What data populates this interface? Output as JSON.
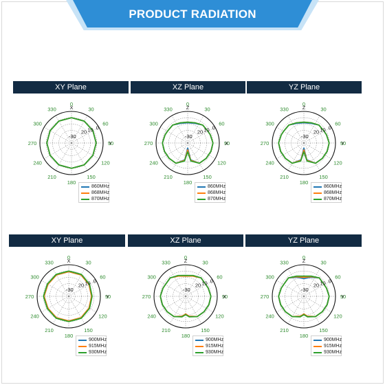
{
  "header": {
    "title": "PRODUCT RADIATION"
  },
  "colors": {
    "series": [
      "#1f77b4",
      "#ff7f0e",
      "#2ca02c"
    ],
    "banner": "#2e8ed6",
    "panel_header": "#122b43",
    "angle_labels": "#2c8a2c"
  },
  "angle_labels": [
    "0",
    "30",
    "60",
    "90",
    "120",
    "150",
    "180",
    "210",
    "240",
    "270",
    "300",
    "330"
  ],
  "radial_labels": [
    "-30",
    "20",
    "10",
    "0"
  ],
  "chart_data": [
    {
      "type": "polar",
      "title": "XY Plane",
      "axis_labels": {
        "top": "X",
        "right": "Y"
      },
      "rlim": [
        -40,
        10
      ],
      "grid": true,
      "legend_position": "lower-right",
      "theta_deg": [
        0,
        30,
        60,
        90,
        120,
        150,
        180,
        210,
        240,
        270,
        300,
        330
      ],
      "series": [
        {
          "name": "860MHz",
          "r": [
            0,
            0,
            -1,
            -1,
            -1,
            0,
            0,
            0,
            -1,
            -1,
            -1,
            0
          ]
        },
        {
          "name": "868MHz",
          "r": [
            0,
            0,
            -1,
            -1,
            -1,
            0,
            0,
            0,
            -1,
            -1,
            -1,
            0
          ]
        },
        {
          "name": "870MHz",
          "r": [
            0,
            0,
            -1,
            -1,
            -1,
            0,
            0,
            0,
            -1,
            -1,
            -1,
            0
          ]
        }
      ]
    },
    {
      "type": "polar",
      "title": "XZ Plane",
      "axis_labels": {
        "top": "Z",
        "right": "X"
      },
      "rlim": [
        -40,
        10
      ],
      "grid": true,
      "legend_position": "lower-right",
      "theta_deg": [
        0,
        20,
        40,
        60,
        70,
        90,
        110,
        130,
        150,
        170,
        180,
        190,
        210,
        230,
        250,
        270,
        290,
        300,
        320,
        340
      ],
      "series": [
        {
          "name": "860MHz",
          "r": [
            -8,
            -7,
            -3,
            -3,
            -2,
            0,
            -1,
            -2,
            -3,
            -13,
            -32,
            -13,
            -3,
            -2,
            -1,
            0,
            -2,
            -3,
            -3,
            -7
          ]
        },
        {
          "name": "868MHz",
          "r": [
            -7,
            -6,
            -3,
            -3,
            -2,
            0,
            -1,
            -2,
            -3,
            -12,
            -29,
            -12,
            -3,
            -2,
            -1,
            0,
            -2,
            -3,
            -3,
            -6
          ]
        },
        {
          "name": "870MHz",
          "r": [
            -7,
            -6,
            -3,
            -3,
            -2,
            0,
            -1,
            -2,
            -3,
            -11,
            -26,
            -11,
            -3,
            -2,
            -1,
            0,
            -2,
            -3,
            -3,
            -6
          ]
        }
      ]
    },
    {
      "type": "polar",
      "title": "YZ Plane",
      "axis_labels": {
        "top": "Z",
        "right": "Y"
      },
      "rlim": [
        -40,
        10
      ],
      "grid": true,
      "legend_position": "lower-right",
      "theta_deg": [
        0,
        20,
        40,
        60,
        70,
        90,
        110,
        130,
        150,
        170,
        180,
        190,
        210,
        230,
        250,
        270,
        290,
        300,
        320,
        340
      ],
      "series": [
        {
          "name": "860MHz",
          "r": [
            -8,
            -7,
            -3,
            -3,
            -2,
            0,
            -1,
            -2,
            -3,
            -13,
            -32,
            -13,
            -3,
            -2,
            -1,
            0,
            -2,
            -3,
            -3,
            -7
          ]
        },
        {
          "name": "868MHz",
          "r": [
            -7,
            -6,
            -3,
            -3,
            -2,
            0,
            -1,
            -2,
            -3,
            -12,
            -29,
            -12,
            -3,
            -2,
            -1,
            0,
            -2,
            -3,
            -3,
            -6
          ]
        },
        {
          "name": "870MHz",
          "r": [
            -7,
            -6,
            -3,
            -3,
            -2,
            0,
            -1,
            -2,
            -3,
            -11,
            -26,
            -11,
            -3,
            -2,
            -1,
            0,
            -2,
            -3,
            -3,
            -6
          ]
        }
      ]
    },
    {
      "type": "polar",
      "title": "XY Plane",
      "axis_labels": {
        "top": "X",
        "right": "Y"
      },
      "rlim": [
        -40,
        10
      ],
      "grid": true,
      "legend_position": "lower-right",
      "theta_deg": [
        0,
        30,
        60,
        90,
        120,
        150,
        180,
        210,
        240,
        270,
        300,
        330
      ],
      "series": [
        {
          "name": "900MHz",
          "r": [
            -1,
            -1,
            -3,
            -4,
            -3,
            -1,
            -1,
            -1,
            -2,
            -1,
            -2,
            -1
          ]
        },
        {
          "name": "915MHz",
          "r": [
            -1,
            -1,
            -3,
            -4,
            -3,
            -1,
            -1,
            -1,
            -2,
            -1,
            -2,
            -1
          ]
        },
        {
          "name": "930MHz",
          "r": [
            0,
            0,
            -2,
            -3,
            -2,
            0,
            0,
            0,
            -1,
            0,
            -1,
            0
          ]
        }
      ]
    },
    {
      "type": "polar",
      "title": "XZ Plane",
      "axis_labels": {
        "top": "Z",
        "right": "X"
      },
      "rlim": [
        -40,
        10
      ],
      "grid": true,
      "legend_position": "lower-right",
      "theta_deg": [
        0,
        20,
        40,
        60,
        70,
        90,
        110,
        130,
        150,
        170,
        180,
        190,
        210,
        230,
        250,
        270,
        290,
        300,
        320,
        340
      ],
      "series": [
        {
          "name": "900MHz",
          "r": [
            -8,
            -6,
            -2,
            -3,
            -2,
            0,
            -1,
            -2,
            -3,
            -8,
            -12,
            -8,
            -3,
            -2,
            -1,
            0,
            -2,
            -3,
            -2,
            -6
          ]
        },
        {
          "name": "915MHz",
          "r": [
            -8,
            -6,
            -2,
            -3,
            -2,
            0,
            -1,
            -2,
            -3,
            -8,
            -12,
            -8,
            -3,
            -2,
            -1,
            0,
            -2,
            -3,
            -2,
            -6
          ]
        },
        {
          "name": "930MHz",
          "r": [
            -7,
            -5,
            -2,
            -3,
            -2,
            0,
            -1,
            -2,
            -3,
            -7,
            -11,
            -7,
            -3,
            -2,
            -1,
            0,
            -2,
            -3,
            -2,
            -5
          ]
        }
      ]
    },
    {
      "type": "polar",
      "title": "YZ Plane",
      "axis_labels": {
        "top": "Z",
        "right": "Y"
      },
      "rlim": [
        -40,
        10
      ],
      "grid": true,
      "legend_position": "lower-right",
      "theta_deg": [
        0,
        20,
        40,
        60,
        70,
        90,
        110,
        130,
        150,
        170,
        180,
        190,
        210,
        230,
        250,
        270,
        290,
        300,
        320,
        340
      ],
      "series": [
        {
          "name": "900MHz",
          "r": [
            -12,
            -8,
            -2,
            -3,
            -2,
            0,
            -1,
            -2,
            -3,
            -8,
            -12,
            -8,
            -3,
            -2,
            -1,
            0,
            -2,
            -3,
            -2,
            -8
          ]
        },
        {
          "name": "915MHz",
          "r": [
            -10,
            -7,
            -2,
            -3,
            -2,
            0,
            -1,
            -2,
            -3,
            -8,
            -12,
            -8,
            -3,
            -2,
            -1,
            0,
            -2,
            -3,
            -2,
            -7
          ]
        },
        {
          "name": "930MHz",
          "r": [
            -8,
            -6,
            -2,
            -3,
            -2,
            0,
            -1,
            -2,
            -3,
            -7,
            -11,
            -7,
            -3,
            -2,
            -1,
            0,
            -2,
            -3,
            -2,
            -6
          ]
        }
      ]
    }
  ]
}
